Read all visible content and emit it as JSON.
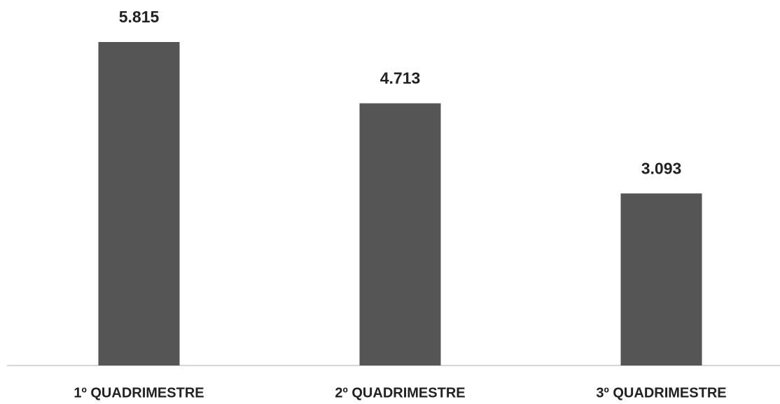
{
  "chart_data": {
    "type": "bar",
    "categories": [
      "1º QUADRIMESTRE",
      "2º QUADRIMESTRE",
      "3º QUADRIMESTRE"
    ],
    "values": [
      5815,
      4713,
      3093
    ],
    "value_labels": [
      "5.815",
      "4.713",
      "3.093"
    ],
    "color": "#555555"
  }
}
